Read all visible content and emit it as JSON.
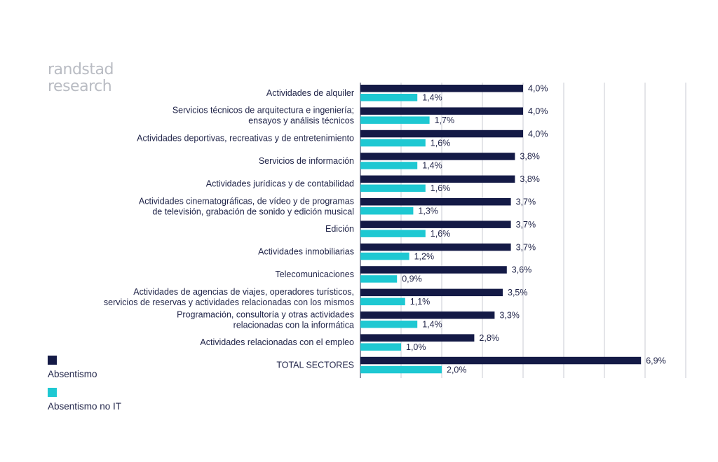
{
  "brand": {
    "line1": "randstad",
    "line2": "research"
  },
  "colors": {
    "primary": "#141a46",
    "secondary": "#1ec8d2",
    "grid": "#c9cbd3",
    "text": "#22264a"
  },
  "chart_data": {
    "type": "bar",
    "orientation": "horizontal",
    "xlim": [
      0,
      8
    ],
    "grid": true,
    "legend_position": "bottom-left",
    "categories": [
      [
        "Actividades de alquiler"
      ],
      [
        "Servicios técnicos de arquitectura e ingeniería;",
        "ensayos y análisis técnicos"
      ],
      [
        "Actividades deportivas, recreativas y de entretenimiento"
      ],
      [
        "Servicios de información"
      ],
      [
        "Actividades jurídicas y de contabilidad"
      ],
      [
        "Actividades cinematográficas, de vídeo y de programas",
        "de televisión, grabación de sonido y edición musical"
      ],
      [
        "Edición"
      ],
      [
        "Actividades inmobiliarias"
      ],
      [
        "Telecomunicaciones"
      ],
      [
        "Actividades de agencias de viajes, operadores turísticos,",
        "servicios de reservas y actividades relacionadas con los mismos"
      ],
      [
        "Programación, consultoría y otras actividades",
        "relacionadas con la informática"
      ],
      [
        "Actividades relacionadas con el empleo"
      ],
      [
        "TOTAL SECTORES"
      ]
    ],
    "series": [
      {
        "name": "Absentismo",
        "color": "#141a46",
        "values": [
          4.0,
          4.0,
          4.0,
          3.8,
          3.8,
          3.7,
          3.7,
          3.7,
          3.6,
          3.5,
          3.3,
          2.8,
          6.9
        ],
        "labels": [
          "4,0%",
          "4,0%",
          "4,0%",
          "3,8%",
          "3,8%",
          "3,7%",
          "3,7%",
          "3,7%",
          "3,6%",
          "3,5%",
          "3,3%",
          "2,8%",
          "6,9%"
        ]
      },
      {
        "name": "Absentismo no IT",
        "color": "#1ec8d2",
        "values": [
          1.4,
          1.7,
          1.6,
          1.4,
          1.6,
          1.3,
          1.6,
          1.2,
          0.9,
          1.1,
          1.4,
          1.0,
          2.0
        ],
        "labels": [
          "1,4%",
          "1,7%",
          "1,6%",
          "1,4%",
          "1,6%",
          "1,3%",
          "1,6%",
          "1,2%",
          "0,9%",
          "1,1%",
          "1,4%",
          "1,0%",
          "2,0%"
        ]
      }
    ]
  }
}
